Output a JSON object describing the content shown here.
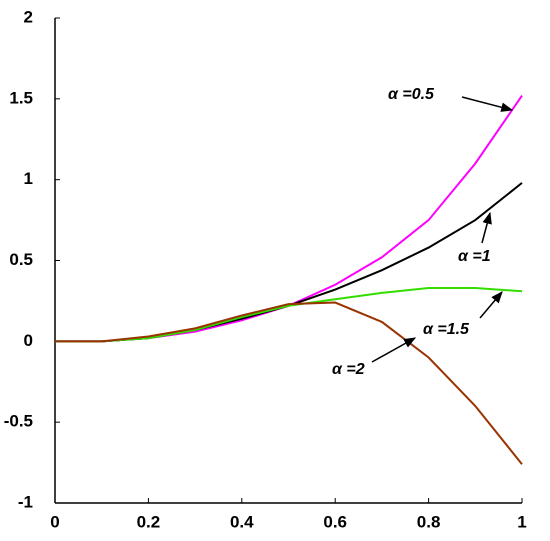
{
  "chart_data": {
    "type": "line",
    "x": [
      0,
      0.1,
      0.2,
      0.3,
      0.4,
      0.5,
      0.6,
      0.7,
      0.8,
      0.9,
      1
    ],
    "series": [
      {
        "name": "α =0.5",
        "color": "#ff00ff",
        "values": [
          0,
          0,
          0.02,
          0.06,
          0.13,
          0.22,
          0.35,
          0.52,
          0.75,
          1.1,
          1.52
        ]
      },
      {
        "name": "α =1",
        "color": "#000000",
        "values": [
          0,
          0,
          0.02,
          0.07,
          0.14,
          0.22,
          0.32,
          0.44,
          0.58,
          0.75,
          0.98
        ]
      },
      {
        "name": "α =1.5",
        "color": "#33dd00",
        "values": [
          0,
          0,
          0.02,
          0.07,
          0.15,
          0.22,
          0.26,
          0.3,
          0.33,
          0.33,
          0.31
        ]
      },
      {
        "name": "α =2",
        "color": "#993300",
        "values": [
          0,
          0,
          0.03,
          0.08,
          0.16,
          0.23,
          0.24,
          0.12,
          -0.1,
          -0.4,
          -0.76
        ]
      }
    ],
    "xlim": [
      0,
      1
    ],
    "xticks": [
      0,
      0.2,
      0.4,
      0.6,
      0.8,
      1
    ],
    "ylim": [
      -1,
      2
    ],
    "yticks": [
      -1,
      -0.5,
      0,
      0.5,
      1,
      1.5,
      2
    ]
  }
}
